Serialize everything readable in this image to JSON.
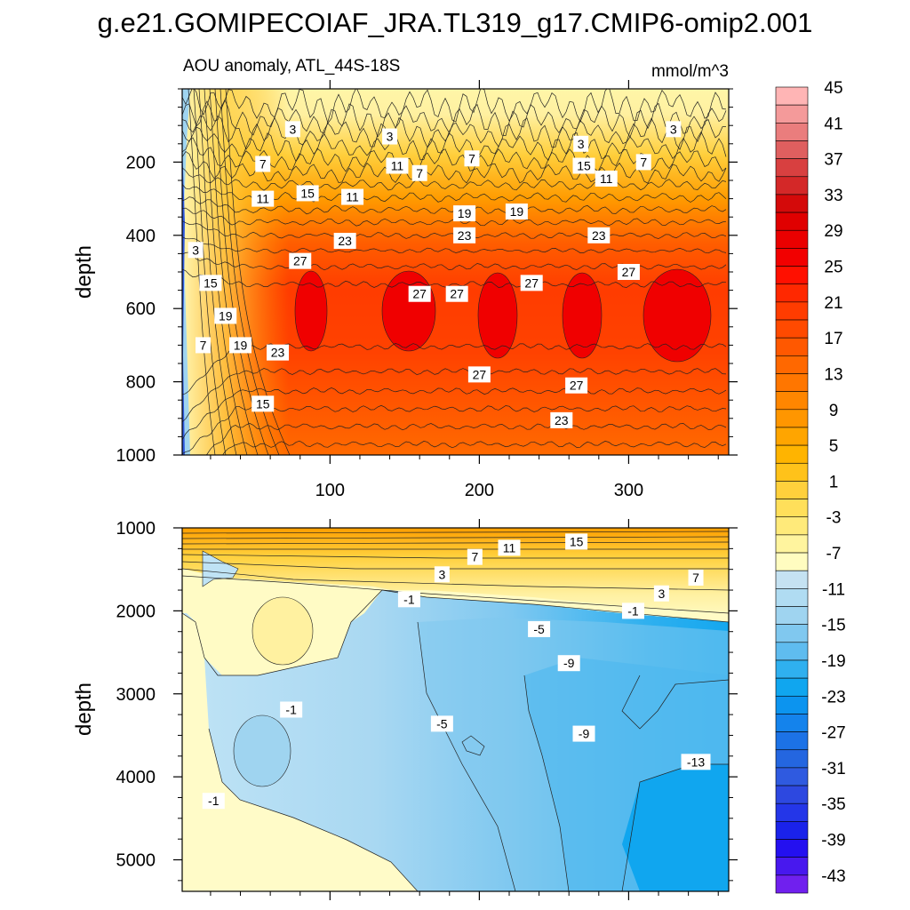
{
  "title": "g.e21.GOMIPECOIAF_JRA.TL319_g17.CMIP6-omip2.001",
  "colors": {
    "background": "#ffffff",
    "frame": "#000000",
    "contour": "#222222",
    "label_bg": "#ffffff"
  },
  "chart_data": [
    {
      "type": "heatmap",
      "name": "upper",
      "subtitle_left": "AOU anomaly, ATL_44S-18S",
      "subtitle_right": "mmol/m^3",
      "xlabel": "",
      "ylabel": "depth",
      "xlim": [
        1,
        367
      ],
      "ylim": [
        1000,
        0
      ],
      "xticks": [
        100,
        200,
        300
      ],
      "xtick_labels": [
        "100",
        "200",
        "300"
      ],
      "yticks": [
        200,
        400,
        600,
        800,
        1000
      ],
      "ytick_labels": [
        "200",
        "400",
        "600",
        "800",
        "1000"
      ],
      "contour_labels": [
        {
          "x": 75,
          "y": 110,
          "text": "3"
        },
        {
          "x": 140,
          "y": 130,
          "text": "3"
        },
        {
          "x": 268,
          "y": 150,
          "text": "3"
        },
        {
          "x": 330,
          "y": 110,
          "text": "3"
        },
        {
          "x": 55,
          "y": 205,
          "text": "7"
        },
        {
          "x": 55,
          "y": 300,
          "text": "11"
        },
        {
          "x": 85,
          "y": 285,
          "text": "15"
        },
        {
          "x": 115,
          "y": 295,
          "text": "11"
        },
        {
          "x": 270,
          "y": 210,
          "text": "15"
        },
        {
          "x": 190,
          "y": 340,
          "text": "19"
        },
        {
          "x": 225,
          "y": 335,
          "text": "19"
        },
        {
          "x": 190,
          "y": 400,
          "text": "23"
        },
        {
          "x": 280,
          "y": 400,
          "text": "23"
        },
        {
          "x": 110,
          "y": 415,
          "text": "23"
        },
        {
          "x": 80,
          "y": 470,
          "text": "27"
        },
        {
          "x": 160,
          "y": 560,
          "text": "27"
        },
        {
          "x": 185,
          "y": 560,
          "text": "27"
        },
        {
          "x": 235,
          "y": 530,
          "text": "27"
        },
        {
          "x": 300,
          "y": 500,
          "text": "27"
        },
        {
          "x": 10,
          "y": 440,
          "text": "3"
        },
        {
          "x": 20,
          "y": 530,
          "text": "15"
        },
        {
          "x": 30,
          "y": 620,
          "text": "19"
        },
        {
          "x": 40,
          "y": 700,
          "text": "19"
        },
        {
          "x": 15,
          "y": 700,
          "text": "7"
        },
        {
          "x": 65,
          "y": 720,
          "text": "23"
        },
        {
          "x": 200,
          "y": 780,
          "text": "27"
        },
        {
          "x": 265,
          "y": 810,
          "text": "27"
        },
        {
          "x": 55,
          "y": 860,
          "text": "15"
        },
        {
          "x": 255,
          "y": 905,
          "text": "23"
        },
        {
          "x": 195,
          "y": 190,
          "text": "7"
        },
        {
          "x": 160,
          "y": 230,
          "text": "7"
        },
        {
          "x": 310,
          "y": 200,
          "text": "7"
        },
        {
          "x": 145,
          "y": 210,
          "text": "11"
        },
        {
          "x": 285,
          "y": 245,
          "text": "11"
        }
      ]
    },
    {
      "type": "heatmap",
      "name": "lower",
      "xlabel": "",
      "ylabel": "depth",
      "xlim": [
        1,
        367
      ],
      "ylim": [
        5380,
        1000
      ],
      "xticks": [
        100,
        200,
        300
      ],
      "xtick_labels": [
        "",
        "",
        ""
      ],
      "yticks": [
        1000,
        2000,
        3000,
        4000,
        5000
      ],
      "ytick_labels": [
        "1000",
        "2000",
        "3000",
        "4000",
        "5000"
      ],
      "contour_labels": [
        {
          "x": 265,
          "y": 1165,
          "text": "15"
        },
        {
          "x": 220,
          "y": 1240,
          "text": "11"
        },
        {
          "x": 197,
          "y": 1350,
          "text": "7"
        },
        {
          "x": 175,
          "y": 1560,
          "text": "3"
        },
        {
          "x": 345,
          "y": 1600,
          "text": "7"
        },
        {
          "x": 322,
          "y": 1790,
          "text": "3"
        },
        {
          "x": 153,
          "y": 1860,
          "text": "-1"
        },
        {
          "x": 303,
          "y": 2000,
          "text": "-1"
        },
        {
          "x": 240,
          "y": 2220,
          "text": "-5"
        },
        {
          "x": 260,
          "y": 2630,
          "text": "-9"
        },
        {
          "x": 74,
          "y": 3190,
          "text": "-1"
        },
        {
          "x": 175,
          "y": 3360,
          "text": "-5"
        },
        {
          "x": 270,
          "y": 3480,
          "text": "-9"
        },
        {
          "x": 345,
          "y": 3820,
          "text": "-13"
        },
        {
          "x": 22,
          "y": 4290,
          "text": "-1"
        }
      ]
    }
  ],
  "colorbar": {
    "levels": [
      -43,
      -41,
      -39,
      -37,
      -35,
      -33,
      -31,
      -29,
      -27,
      -25,
      -23,
      -21,
      -19,
      -17,
      -15,
      -13,
      -11,
      -9,
      -7,
      -5,
      -3,
      -1,
      1,
      3,
      5,
      7,
      9,
      11,
      13,
      15,
      17,
      19,
      21,
      23,
      25,
      27,
      29,
      31,
      33,
      35,
      37,
      39,
      41,
      43,
      45
    ],
    "tick_labels": [
      "45",
      "41",
      "37",
      "33",
      "29",
      "25",
      "21",
      "17",
      "13",
      "9",
      "5",
      "1",
      "-3",
      "-7",
      "-11",
      "-15",
      "-19",
      "-23",
      "-27",
      "-31",
      "-35",
      "-39",
      "-43"
    ],
    "colors": [
      "#ffb5b5",
      "#f49a9a",
      "#ea7d7d",
      "#df5f5f",
      "#d84040",
      "#d42828",
      "#d40a0a",
      "#e00000",
      "#ea0000",
      "#f20000",
      "#ff1000",
      "#ff2800",
      "#ff3c00",
      "#ff4a00",
      "#ff5800",
      "#ff6800",
      "#ff7600",
      "#ff8600",
      "#ff9600",
      "#ffa500",
      "#ffb400",
      "#ffc21a",
      "#ffd03c",
      "#ffdf5a",
      "#ffea7a",
      "#fff49e",
      "#fffcc0",
      "#c5e2f2",
      "#b0dcf2",
      "#9fd4f0",
      "#80c8ef",
      "#5fbcef",
      "#2fb0ef",
      "#10a6ef",
      "#0c94ef",
      "#1483ec",
      "#1c72e6",
      "#2466e0",
      "#2f5ae0",
      "#2d48e0",
      "#2436e8",
      "#1a22ea",
      "#2410f0",
      "#4818ee",
      "#7020ee"
    ]
  }
}
